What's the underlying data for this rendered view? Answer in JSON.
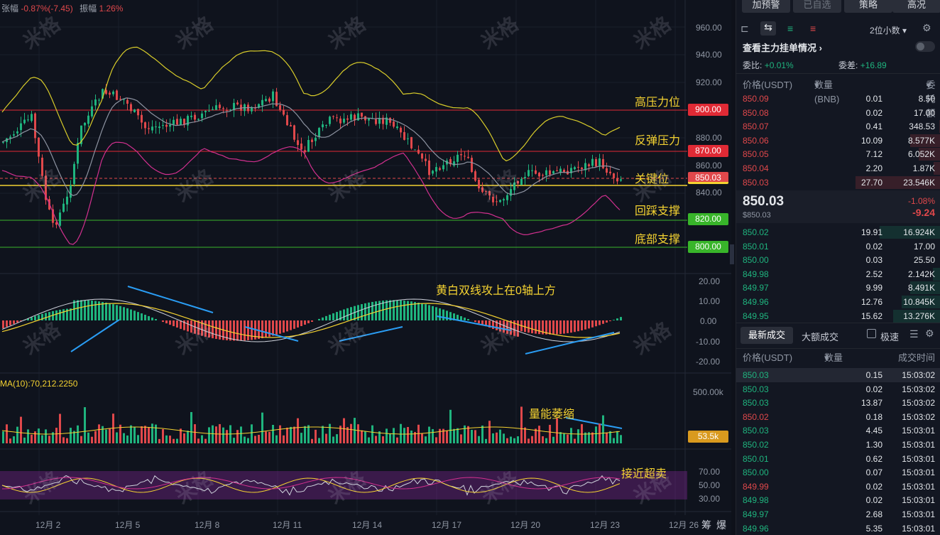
{
  "header_stats": {
    "change_label": "张幅",
    "change_value": "-0.87%(-7.45)",
    "amplitude_label": "振幅",
    "amplitude_value": "1.26%"
  },
  "price_axis": [
    "960.00",
    "940.00",
    "920.00",
    "880.00",
    "860.00",
    "840.00"
  ],
  "price_tags": [
    {
      "label": "900.00",
      "color": "#e02a35"
    },
    {
      "label": "870.00",
      "color": "#e02a35"
    },
    {
      "label": "850.03",
      "color": "#e0484b"
    },
    {
      "label": "820.00",
      "color": "#38b52a"
    },
    {
      "label": "800.00",
      "color": "#38b52a"
    }
  ],
  "annotations": {
    "high_resistance": "高压力位",
    "rebound_resistance": "反弹压力",
    "key_level": "关键位",
    "pullback_support": "回踩支撑",
    "bottom_support": "底部支撑",
    "macd_note": "黄白双线攻上在0轴上方",
    "volume_note": "量能萎缩",
    "rsi_note": "接近超卖"
  },
  "macd_axis": [
    "20.00",
    "10.00",
    "0.00",
    "-10.00",
    "-20.00"
  ],
  "volume": {
    "ma_label": "MA(10):70,212.2250",
    "axis_top": "500.00k",
    "current": "53.5k"
  },
  "rsi_axis": [
    "70.00",
    "50.00",
    "30.00"
  ],
  "dates": [
    "12月 2",
    "12月 5",
    "12月 8",
    "12月 11",
    "12月 14",
    "12月 17",
    "12月 20",
    "12月 23",
    "12月 26"
  ],
  "bottom_icons": {
    "chips": "筹",
    "burst": "爆"
  },
  "watermark": "米格",
  "colors": {
    "up": "#1fb47e",
    "down": "#e0484b",
    "bg": "#0f131d",
    "accent_yellow": "#f4d231"
  },
  "panel": {
    "buttons": [
      {
        "label": "加预警",
        "disabled": false
      },
      {
        "label": "已自选",
        "disabled": true
      },
      {
        "label": "策略",
        "disabled": false
      },
      {
        "label": "高况",
        "disabled": false
      }
    ],
    "precision": "2位小数",
    "order_title": "查看主力挂单情况",
    "ratio_label": "委比:",
    "ratio_value": "+0.01%",
    "diff_label": "委差:",
    "diff_value": "+16.89",
    "headers": {
      "price": "价格(USDT)",
      "qty": "数量 (BNB)",
      "amount": "委托额"
    },
    "asks": [
      {
        "price": "850.09",
        "qty": "0.01",
        "amount": "8.50",
        "depth": 0.0
      },
      {
        "price": "850.08",
        "qty": "0.02",
        "amount": "17.00",
        "depth": 0.0
      },
      {
        "price": "850.07",
        "qty": "0.41",
        "amount": "348.53",
        "depth": 0.02
      },
      {
        "price": "850.06",
        "qty": "10.09",
        "amount": "8.577K",
        "depth": 0.36
      },
      {
        "price": "850.05",
        "qty": "7.12",
        "amount": "6.052K",
        "depth": 0.26
      },
      {
        "price": "850.04",
        "qty": "2.20",
        "amount": "1.87K",
        "depth": 0.08
      },
      {
        "price": "850.03",
        "qty": "27.70",
        "amount": "23.546K",
        "depth": 1.0
      }
    ],
    "last_price": "850.03",
    "last_price_usd": "$850.03",
    "change_pct": "-1.08%",
    "change_abs": "-9.24",
    "bids": [
      {
        "price": "850.02",
        "qty": "19.91",
        "amount": "16.924K",
        "depth": 0.72
      },
      {
        "price": "850.01",
        "qty": "0.02",
        "amount": "17.00",
        "depth": 0.0
      },
      {
        "price": "850.00",
        "qty": "0.03",
        "amount": "25.50",
        "depth": 0.0
      },
      {
        "price": "849.98",
        "qty": "2.52",
        "amount": "2.142K",
        "depth": 0.09
      },
      {
        "price": "849.97",
        "qty": "9.99",
        "amount": "8.491K",
        "depth": 0.36
      },
      {
        "price": "849.96",
        "qty": "12.76",
        "amount": "10.845K",
        "depth": 0.46
      },
      {
        "price": "849.95",
        "qty": "15.62",
        "amount": "13.276K",
        "depth": 0.56
      }
    ],
    "trade_tabs": {
      "latest": "最新成交",
      "large": "大额成交",
      "speed": "极速"
    },
    "trade_headers": {
      "price": "价格(USDT)",
      "qty": "数量(BNB)",
      "time": "成交时间"
    },
    "trades": [
      {
        "price": "850.03",
        "qty": "0.15",
        "time": "15:03:02",
        "side": "bid"
      },
      {
        "price": "850.03",
        "qty": "0.02",
        "time": "15:03:02",
        "side": "bid"
      },
      {
        "price": "850.03",
        "qty": "13.87",
        "time": "15:03:02",
        "side": "bid"
      },
      {
        "price": "850.02",
        "qty": "0.18",
        "time": "15:03:02",
        "side": "ask"
      },
      {
        "price": "850.03",
        "qty": "4.45",
        "time": "15:03:01",
        "side": "bid"
      },
      {
        "price": "850.02",
        "qty": "1.30",
        "time": "15:03:01",
        "side": "bid"
      },
      {
        "price": "850.01",
        "qty": "0.62",
        "time": "15:03:01",
        "side": "bid"
      },
      {
        "price": "850.00",
        "qty": "0.07",
        "time": "15:03:01",
        "side": "bid"
      },
      {
        "price": "849.99",
        "qty": "0.02",
        "time": "15:03:01",
        "side": "ask"
      },
      {
        "price": "849.98",
        "qty": "0.02",
        "time": "15:03:01",
        "side": "bid"
      },
      {
        "price": "849.97",
        "qty": "2.68",
        "time": "15:03:01",
        "side": "bid"
      },
      {
        "price": "849.96",
        "qty": "5.35",
        "time": "15:03:01",
        "side": "bid"
      }
    ]
  }
}
